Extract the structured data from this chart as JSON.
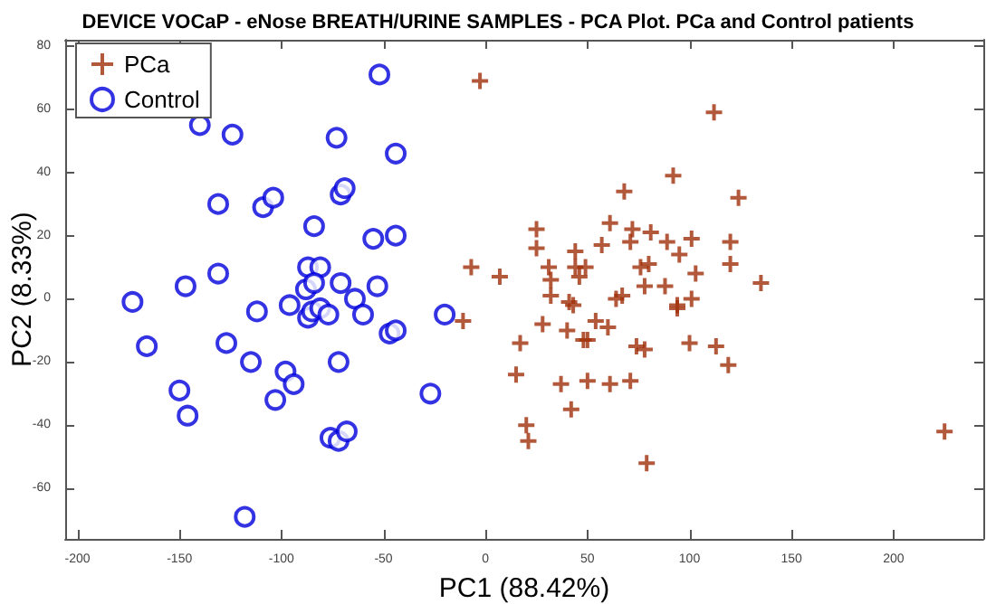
{
  "chart_data": {
    "type": "scatter",
    "title": "DEVICE VOCaP - eNose BREATH/URINE SAMPLES - PCA Plot. PCa and Control patients",
    "xlabel": "PC1 (88.42%)",
    "ylabel": "PC2 (8.33%)",
    "xlim": [
      -206,
      244
    ],
    "ylim": [
      -76,
      82
    ],
    "xticks": [
      -200,
      -150,
      -100,
      -50,
      0,
      50,
      100,
      150,
      200
    ],
    "yticks": [
      -60,
      -40,
      -20,
      0,
      20,
      40,
      60,
      80
    ],
    "grid": false,
    "legend": "top left",
    "series": [
      {
        "name": "PCa",
        "color": "#a0300a",
        "marker": "cross",
        "x": [
          -2.7,
          -7,
          7,
          -11,
          112,
          92,
          68,
          124,
          25,
          25,
          61,
          72,
          81,
          71,
          89,
          101,
          120,
          57,
          95,
          120,
          31,
          44,
          44,
          49,
          46,
          76,
          80,
          103,
          135,
          32,
          78,
          88,
          32,
          67,
          64,
          41,
          94,
          101,
          43,
          94,
          28,
          54,
          60,
          40,
          48,
          50,
          17,
          74,
          78,
          100,
          113,
          119,
          15,
          37,
          50,
          61,
          71,
          42,
          20,
          21,
          79,
          225
        ],
        "values": [
          69,
          10,
          7,
          -7,
          59,
          39,
          34,
          32,
          22,
          16,
          24,
          22,
          21,
          18,
          18,
          19,
          18,
          17,
          14,
          11,
          10,
          15,
          10,
          10,
          7,
          10,
          11,
          8,
          5,
          6,
          4,
          4,
          1,
          1,
          0,
          -1,
          -2,
          0,
          -2,
          -3,
          -8,
          -7,
          -9,
          -10,
          -13,
          -13,
          -14,
          -15,
          -16,
          -14,
          -15,
          -21,
          -24,
          -27,
          -26,
          -27,
          -26,
          -35,
          -40,
          -45,
          -52,
          -42
        ]
      },
      {
        "name": "Control",
        "color": "#0000dd",
        "marker": "circle",
        "x": [
          -52,
          -140,
          -124,
          -73,
          -44,
          -131,
          -109,
          -104,
          -71,
          -69,
          -84,
          -55,
          -44,
          -131,
          -147,
          -87,
          -81,
          -71,
          -53,
          -173,
          -112,
          -96,
          -88,
          -84,
          -87,
          -85,
          -81,
          -77,
          -64,
          -60,
          -47,
          -44,
          -20,
          -166,
          -127,
          -115,
          -98,
          -94,
          -103,
          -72,
          -150,
          -146,
          -27,
          -76,
          -72,
          -68,
          -118
        ],
        "values": [
          71,
          55,
          52,
          51,
          46,
          30,
          29,
          32,
          33,
          35,
          23,
          19,
          20,
          8,
          4,
          10,
          10,
          5,
          4,
          -1,
          -4,
          -2,
          3,
          5,
          -6,
          -4,
          -3,
          -5,
          0,
          -5,
          -11,
          -10,
          -5,
          -15,
          -14,
          -20,
          -23,
          -27,
          -32,
          -20,
          -29,
          -37,
          -30,
          -44,
          -45,
          -42,
          -69
        ]
      }
    ]
  }
}
